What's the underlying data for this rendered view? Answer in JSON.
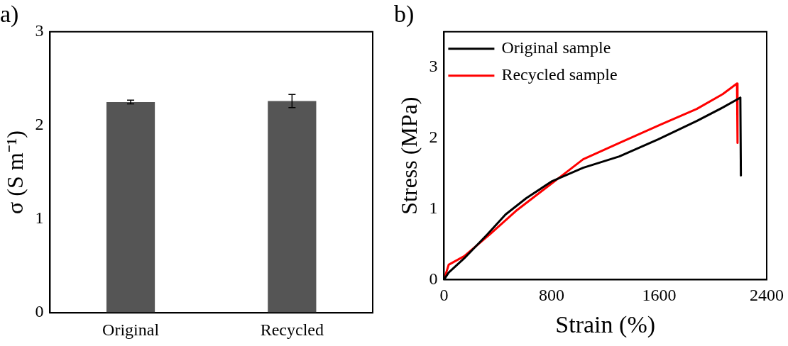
{
  "chart_data": [
    {
      "type": "bar",
      "title": "a)",
      "ylabel": "σ (S m⁻¹)",
      "categories": [
        "Original",
        "Recycled"
      ],
      "values": [
        2.25,
        2.26
      ],
      "errors": [
        0.02,
        0.07
      ],
      "color": "#555555",
      "ylim": [
        0,
        3
      ],
      "yticks": [
        0,
        1,
        2,
        3
      ],
      "grid": false,
      "legend": false
    },
    {
      "type": "line",
      "title": "b)",
      "xlabel": "Strain (%)",
      "ylabel": "Stress (MPa)",
      "xlim": [
        0,
        2400
      ],
      "xticks": [
        0,
        800,
        1600,
        2400
      ],
      "ylim": [
        0,
        3.5
      ],
      "yticks": [
        0,
        1,
        2,
        3
      ],
      "grid": false,
      "legend": "top left",
      "marker": "none",
      "line_style": "solid",
      "series": [
        {
          "name": "Original sample",
          "color": "#000000",
          "x": [
            0,
            35,
            150,
            323,
            458,
            612,
            804,
            1035,
            1304,
            1592,
            1880,
            2073,
            2204,
            2208
          ],
          "values": [
            0,
            0.1,
            0.3,
            0.64,
            0.92,
            1.15,
            1.39,
            1.58,
            1.74,
            1.98,
            2.24,
            2.43,
            2.57,
            1.47
          ]
        },
        {
          "name": "Recycled sample",
          "color": "#ff0000",
          "x": [
            0,
            35,
            150,
            342,
            535,
            727,
            919,
            1035,
            1304,
            1612,
            1880,
            2073,
            2179,
            2183
          ],
          "values": [
            0,
            0.21,
            0.33,
            0.64,
            0.97,
            1.25,
            1.53,
            1.7,
            1.93,
            2.19,
            2.41,
            2.62,
            2.77,
            1.93
          ]
        }
      ]
    }
  ]
}
